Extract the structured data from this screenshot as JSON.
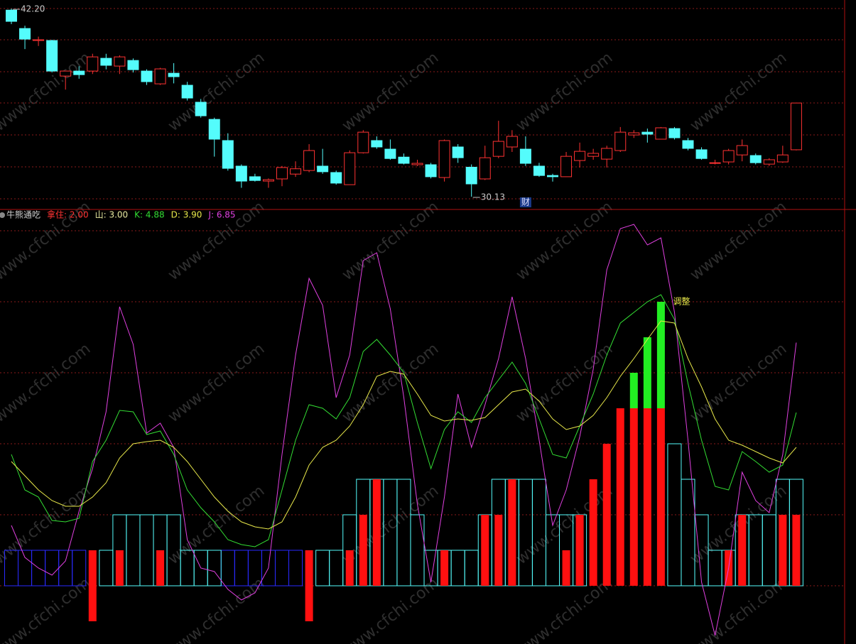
{
  "watermark": "www.cfchi.com",
  "chart_data": [
    {
      "type": "candlestick",
      "colors": {
        "up": "#ff3232",
        "down": "#54fcfc"
      },
      "ylim": [
        29.31,
        42.75
      ],
      "grid": true,
      "candles": [
        [
          42.1,
          42.2,
          41.2,
          41.38
        ],
        [
          40.92,
          41.1,
          39.6,
          40.24
        ],
        [
          40.15,
          40.4,
          39.8,
          40.2
        ],
        [
          40.15,
          40.2,
          38.1,
          38.19
        ],
        [
          37.87,
          38.2,
          37.0,
          38.19
        ],
        [
          38.19,
          38.5,
          37.7,
          37.96
        ],
        [
          38.19,
          39.3,
          38.0,
          39.1
        ],
        [
          39.01,
          39.3,
          38.3,
          38.56
        ],
        [
          38.51,
          39.2,
          38.0,
          39.1
        ],
        [
          38.87,
          39.0,
          38.1,
          38.28
        ],
        [
          38.19,
          38.3,
          37.3,
          37.51
        ],
        [
          37.37,
          38.4,
          37.3,
          38.33
        ],
        [
          38.05,
          38.7,
          37.4,
          37.83
        ],
        [
          37.28,
          37.5,
          36.3,
          36.46
        ],
        [
          36.19,
          36.4,
          35.2,
          35.32
        ],
        [
          35.09,
          35.2,
          32.7,
          33.82
        ],
        [
          33.73,
          34.2,
          31.8,
          31.95
        ],
        [
          32.09,
          32.2,
          30.7,
          31.13
        ],
        [
          31.41,
          31.6,
          31.1,
          31.17
        ],
        [
          31.13,
          31.3,
          30.7,
          31.22
        ],
        [
          31.27,
          32.1,
          30.8,
          32.0
        ],
        [
          31.58,
          32.4,
          31.4,
          31.92
        ],
        [
          31.81,
          33.5,
          31.7,
          33.09
        ],
        [
          32.09,
          33.2,
          31.6,
          31.73
        ],
        [
          31.68,
          31.8,
          30.9,
          31.0
        ],
        [
          30.9,
          33.1,
          30.9,
          32.95
        ],
        [
          32.95,
          34.4,
          32.9,
          34.27
        ],
        [
          33.73,
          34.0,
          33.2,
          33.32
        ],
        [
          33.18,
          33.8,
          32.5,
          32.58
        ],
        [
          32.67,
          32.9,
          32.2,
          32.27
        ],
        [
          32.18,
          32.5,
          32.1,
          32.27
        ],
        [
          32.18,
          32.3,
          31.3,
          31.41
        ],
        [
          31.36,
          33.8,
          31.1,
          33.73
        ],
        [
          33.32,
          33.5,
          32.3,
          32.63
        ],
        [
          32.02,
          32.2,
          30.13,
          30.95
        ],
        [
          31.27,
          33.4,
          31.2,
          32.63
        ],
        [
          32.72,
          35.0,
          32.6,
          33.68
        ],
        [
          33.32,
          34.4,
          33.0,
          34.0
        ],
        [
          33.18,
          34.0,
          32.1,
          32.27
        ],
        [
          32.09,
          32.3,
          31.4,
          31.49
        ],
        [
          31.49,
          31.6,
          31.1,
          31.41
        ],
        [
          31.41,
          33.0,
          31.4,
          32.72
        ],
        [
          32.45,
          33.6,
          32.0,
          33.04
        ],
        [
          32.72,
          33.2,
          32.5,
          32.91
        ],
        [
          32.54,
          33.4,
          32.0,
          33.23
        ],
        [
          33.09,
          34.6,
          33.0,
          34.27
        ],
        [
          34.09,
          34.4,
          33.9,
          34.23
        ],
        [
          34.27,
          34.5,
          33.6,
          34.14
        ],
        [
          33.82,
          34.6,
          33.8,
          34.55
        ],
        [
          34.5,
          34.6,
          33.8,
          33.91
        ],
        [
          33.73,
          33.9,
          33.1,
          33.23
        ],
        [
          33.14,
          33.3,
          32.5,
          32.58
        ],
        [
          32.27,
          32.5,
          32.2,
          32.31
        ],
        [
          32.36,
          33.2,
          32.2,
          33.09
        ],
        [
          32.81,
          33.8,
          32.4,
          33.41
        ],
        [
          32.77,
          32.9,
          32.2,
          32.31
        ],
        [
          32.22,
          32.6,
          32.1,
          32.5
        ],
        [
          32.36,
          33.4,
          32.3,
          32.81
        ],
        [
          33.14,
          36.14,
          33.1,
          36.14
        ]
      ],
      "annotations": [
        {
          "x": 0,
          "value": 42.2,
          "label": "42.20"
        },
        {
          "x": 34,
          "value": 30.13,
          "label": "30.13"
        }
      ],
      "markers": [
        {
          "x": 38,
          "label": "财"
        }
      ]
    },
    {
      "type": "indicator",
      "ylim": [
        -1.64,
        10.6
      ],
      "grid": true,
      "header": [
        {
          "text": "牛熊通吃",
          "color": "#d0d0d0"
        },
        {
          "text": "拿住: 2.00",
          "color": "#ff3232"
        },
        {
          "text": "山: 3.00",
          "color": "#e8e8a0"
        },
        {
          "text": "K: 4.88",
          "color": "#33dd33"
        },
        {
          "text": "D: 3.90",
          "color": "#e8e84a"
        },
        {
          "text": "J: 6.85",
          "color": "#e040e0"
        }
      ],
      "annotations": [
        {
          "x": 49,
          "value": 8,
          "label": "调整",
          "color": "#e8e84a"
        }
      ],
      "series": [
        {
          "style": "outline",
          "color": "#2a2aff",
          "values": [
            1,
            1,
            1,
            1,
            1,
            1,
            null,
            null,
            null,
            null,
            null,
            null,
            null,
            null,
            null,
            null,
            1,
            1,
            1,
            1,
            1,
            1,
            null,
            null,
            null,
            null,
            null,
            null,
            null,
            null,
            null,
            null,
            null,
            null,
            null,
            null,
            null,
            null,
            null,
            null,
            null,
            null,
            null,
            null,
            null,
            null,
            null,
            null,
            null,
            null,
            null,
            null,
            null,
            null,
            null,
            null,
            null,
            null,
            null
          ]
        },
        {
          "style": "outline",
          "color": "#54fcfc",
          "values": [
            null,
            null,
            null,
            null,
            null,
            null,
            null,
            1,
            2,
            2,
            2,
            2,
            2,
            1,
            1,
            1,
            null,
            null,
            null,
            null,
            null,
            null,
            null,
            1,
            1,
            2,
            3,
            3,
            3,
            3,
            2,
            1,
            1,
            1,
            1,
            2,
            3,
            3,
            3,
            3,
            2,
            2,
            2,
            null,
            null,
            null,
            null,
            null,
            null,
            4,
            3,
            2,
            1,
            1,
            2,
            2,
            2,
            3,
            3
          ]
        },
        {
          "style": "fill",
          "color": "#ff1010",
          "values": [
            null,
            null,
            null,
            null,
            null,
            null,
            -1,
            null,
            null,
            null,
            null,
            null,
            null,
            null,
            null,
            null,
            null,
            null,
            null,
            null,
            null,
            null,
            -1,
            null,
            null,
            null,
            null,
            null,
            null,
            null,
            null,
            null,
            null,
            null,
            null,
            null,
            null,
            null,
            null,
            null,
            null,
            null,
            null,
            null,
            null,
            null,
            null,
            null,
            null,
            null,
            null,
            null,
            null,
            null,
            null,
            null,
            null,
            null,
            null
          ]
        },
        {
          "style": "fill",
          "color": "#ff1010",
          "values": [
            null,
            null,
            null,
            null,
            null,
            null,
            1,
            null,
            1,
            null,
            null,
            1,
            null,
            null,
            null,
            null,
            null,
            null,
            null,
            null,
            null,
            null,
            1,
            null,
            null,
            1,
            2,
            3,
            null,
            null,
            null,
            null,
            1,
            null,
            null,
            2,
            2,
            3,
            null,
            null,
            null,
            1,
            2,
            3,
            4,
            5,
            5,
            5,
            5,
            null,
            null,
            null,
            null,
            1,
            2,
            null,
            null,
            2,
            2
          ]
        },
        {
          "style": "fill",
          "stacked": true,
          "color": "#22ee22",
          "values": [
            null,
            null,
            null,
            null,
            null,
            null,
            null,
            null,
            null,
            null,
            null,
            null,
            null,
            null,
            null,
            null,
            null,
            null,
            null,
            null,
            null,
            null,
            null,
            null,
            null,
            null,
            null,
            null,
            null,
            null,
            null,
            null,
            null,
            null,
            null,
            null,
            null,
            null,
            null,
            null,
            null,
            null,
            null,
            null,
            null,
            null,
            1,
            2,
            3,
            null,
            null,
            null,
            null,
            null,
            null,
            null,
            null,
            null,
            null
          ]
        },
        {
          "style": "line",
          "color": "#e040e0",
          "values": [
            1.7,
            0.8,
            0.5,
            0.3,
            0.7,
            2.1,
            3.3,
            4.9,
            7.86,
            6.8,
            4.3,
            4.58,
            3.9,
            1.3,
            0.5,
            0.4,
            -0.1,
            -0.4,
            -0.2,
            0.5,
            3.7,
            6.5,
            8.66,
            7.9,
            5.3,
            6.5,
            9.16,
            9.38,
            7.8,
            5.3,
            2.3,
            0.1,
            2.5,
            5.4,
            3.9,
            5.1,
            6.4,
            8.14,
            6.4,
            4.1,
            1.7,
            2.7,
            4.2,
            6.1,
            8.9,
            10.06,
            10.18,
            9.6,
            9.8,
            7.7,
            4.1,
            0.1,
            -1.4,
            0.5,
            3.2,
            2.4,
            2.06,
            3.7,
            6.85
          ]
        },
        {
          "style": "line",
          "color": "#33dd33",
          "values": [
            3.7,
            2.7,
            2.5,
            1.84,
            1.8,
            1.9,
            3.5,
            4.1,
            4.94,
            4.9,
            4.26,
            4.36,
            3.7,
            2.7,
            2.2,
            1.8,
            1.3,
            1.16,
            1.1,
            1.3,
            2.7,
            4.1,
            5.1,
            5,
            4.7,
            5.3,
            6.6,
            6.94,
            6.5,
            6,
            4.6,
            3.3,
            4.4,
            4.9,
            4.6,
            5.3,
            5.8,
            6.3,
            5.7,
            4.7,
            3.7,
            3.6,
            4.5,
            5.4,
            6.5,
            7.4,
            7.7,
            8,
            8.2,
            7.5,
            5.7,
            4.1,
            2.8,
            2.7,
            3.78,
            3.5,
            3.2,
            3.4,
            4.88
          ]
        },
        {
          "style": "line",
          "color": "#e8e84a",
          "values": [
            3.5,
            3.1,
            2.7,
            2.4,
            2.24,
            2.24,
            2.5,
            2.9,
            3.6,
            4,
            4.06,
            4.1,
            3.9,
            3.5,
            3,
            2.5,
            2.1,
            1.8,
            1.66,
            1.6,
            1.8,
            2.5,
            3.4,
            3.9,
            4.1,
            4.5,
            5.1,
            5.9,
            6.04,
            5.96,
            5.4,
            4.8,
            4.64,
            4.7,
            4.66,
            4.74,
            5.1,
            5.46,
            5.54,
            5.2,
            4.7,
            4.4,
            4.5,
            4.8,
            5.3,
            5.9,
            6.4,
            6.94,
            7.46,
            7.4,
            6.4,
            5.6,
            4.7,
            4.1,
            3.96,
            3.78,
            3.6,
            3.46,
            3.9
          ]
        }
      ]
    }
  ]
}
